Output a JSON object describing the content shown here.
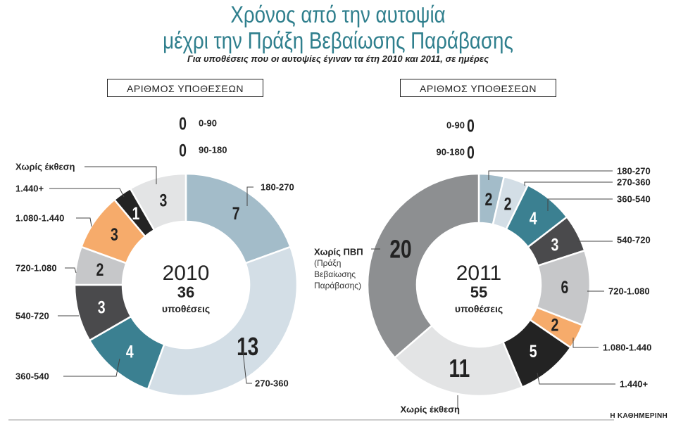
{
  "title_line1": "Χρόνος από την αυτοψία",
  "title_line2": "μέχρι την Πράξη Βεβαίωσης Παράβασης",
  "subtitle": "Για υποθέσεις που οι αυτοψίες έγιναν τα έτη 2010 και 2011, σε ημέρες",
  "credit": "Η ΚΑΘΗΜΕΡΙΝΗ",
  "colors": {
    "title": "#2f7f8d",
    "light_blue_gray": "#a3bcc9",
    "pale_blue": "#d3dee6",
    "teal": "#3b8091",
    "dark_gray": "#4a4a4c",
    "light_gray": "#c6c7c9",
    "orange": "#f6ab6b",
    "black": "#232323",
    "very_light_gray": "#e3e4e5",
    "mid_gray": "#8d8f91"
  },
  "chart_data": [
    {
      "type": "pie",
      "box_label": "ΑΡΙΘΜΟΣ ΥΠΟΘΕΣΕΩΝ",
      "center_year": "2010",
      "center_total": "36",
      "center_unit": "υποθέσεις",
      "slices": [
        {
          "label": "0-90",
          "value": 0,
          "color": "#a3bcc9"
        },
        {
          "label": "90-180",
          "value": 0,
          "color": "#a3bcc9"
        },
        {
          "label": "180-270",
          "value": 7,
          "color": "#a3bcc9"
        },
        {
          "label": "270-360",
          "value": 13,
          "color": "#d3dee6"
        },
        {
          "label": "360-540",
          "value": 4,
          "color": "#3b8091"
        },
        {
          "label": "540-720",
          "value": 3,
          "color": "#4a4a4c"
        },
        {
          "label": "720-1.080",
          "value": 2,
          "color": "#c6c7c9"
        },
        {
          "label": "1.080-1.440",
          "value": 3,
          "color": "#f6ab6b"
        },
        {
          "label": "1.440+",
          "value": 1,
          "color": "#232323"
        },
        {
          "label": "Χωρίς έκθεση",
          "value": 3,
          "color": "#e3e4e5"
        }
      ]
    },
    {
      "type": "pie",
      "box_label": "ΑΡΙΘΜΟΣ ΥΠΟΘΕΣΕΩΝ",
      "center_year": "2011",
      "center_total": "55",
      "center_unit": "υποθέσεις",
      "slices": [
        {
          "label": "0-90",
          "value": 0,
          "color": "#a3bcc9"
        },
        {
          "label": "90-180",
          "value": 0,
          "color": "#a3bcc9"
        },
        {
          "label": "180-270",
          "value": 2,
          "color": "#a3bcc9"
        },
        {
          "label": "270-360",
          "value": 2,
          "color": "#d3dee6"
        },
        {
          "label": "360-540",
          "value": 4,
          "color": "#3b8091"
        },
        {
          "label": "540-720",
          "value": 3,
          "color": "#4a4a4c"
        },
        {
          "label": "720-1.080",
          "value": 6,
          "color": "#c6c7c9"
        },
        {
          "label": "1.080-1.440",
          "value": 2,
          "color": "#f6ab6b"
        },
        {
          "label": "1.440+",
          "value": 5,
          "color": "#232323"
        },
        {
          "label": "Χωρίς έκθεση",
          "value": 11,
          "color": "#e3e4e5"
        },
        {
          "label": "Χωρίς ΠΒΠ",
          "sublabel": [
            "(Πράξη",
            "Βεβαίωσης",
            "Παράβασης)"
          ],
          "value": 20,
          "color": "#8d8f91"
        }
      ]
    }
  ]
}
